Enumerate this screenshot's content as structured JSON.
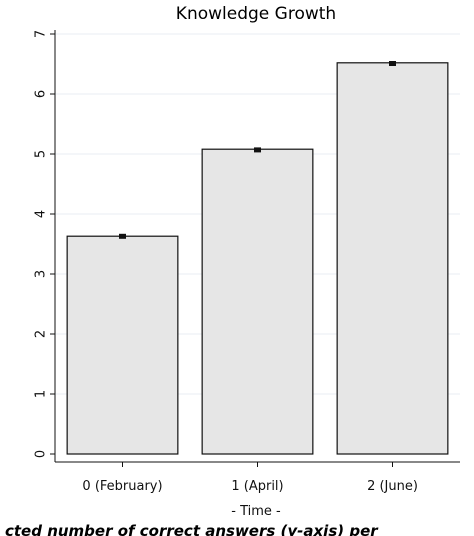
{
  "chart_data": {
    "type": "bar",
    "title": "Knowledge Growth",
    "categories": [
      "0 (February)",
      "1 (April)",
      "2 (June)"
    ],
    "values": [
      3.63,
      5.08,
      6.52
    ],
    "error_bars": [
      {
        "low": 3.6,
        "high": 3.67
      },
      {
        "low": 5.05,
        "high": 5.11
      },
      {
        "low": 6.49,
        "high": 6.55
      }
    ],
    "xlabel": "- Time -",
    "ylabel": "",
    "ylim": [
      0,
      7
    ],
    "yticks": [
      "0",
      "1",
      "2",
      "3",
      "4",
      "5",
      "6",
      "7"
    ],
    "grid": true,
    "bar_color": "#e6e6e6",
    "bar_edge_color": "#111111"
  },
  "caption": "cted number of correct answers (y-axis) per"
}
